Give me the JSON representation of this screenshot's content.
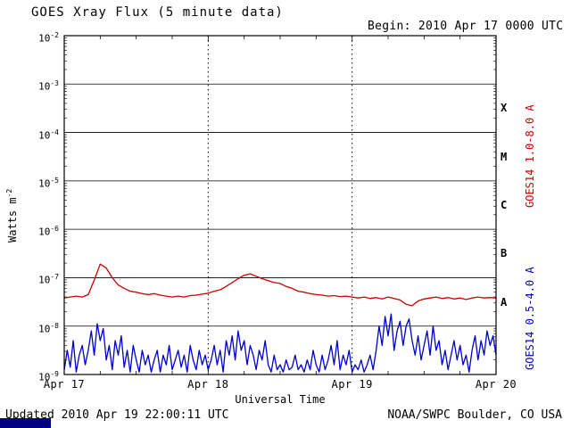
{
  "title": "GOES Xray Flux (5 minute data)",
  "begin_label": "Begin: 2010 Apr 17 0000 UTC",
  "footer": {
    "updated": "Updated 2010 Apr 19 22:00:11 UTC",
    "source": "NOAA/SWPC Boulder, CO USA"
  },
  "axis": {
    "ylabel_main": "Watts m",
    "ylabel_exp": "-2",
    "xlabel": "Universal Time"
  },
  "colors": {
    "long_channel": "#cc0000",
    "short_channel": "#0000cc",
    "axis": "#000000",
    "corner_artifact": "#000080"
  },
  "chart_data": {
    "type": "line",
    "title": "GOES Xray Flux (5 minute data)",
    "xlabel": "Universal Time",
    "ylabel": "Watts m-2",
    "y_scale": "log10",
    "ylim_exp": [
      -9,
      -2
    ],
    "y_log_ticks_exp": [
      -2,
      -3,
      -4,
      -5,
      -6,
      -7,
      -8,
      -9
    ],
    "x_ticks": [
      "Apr 17",
      "Apr 18",
      "Apr 19",
      "Apr 20"
    ],
    "x_tick_hours": [
      0,
      24,
      48,
      72
    ],
    "begin_time": "2010 Apr 17 0000 UTC",
    "grid": {
      "h_solid_exp": [
        -3,
        -4,
        -5,
        -6,
        -7,
        -8
      ],
      "v_dotted_hours": [
        24,
        48
      ]
    },
    "flare_classes": [
      {
        "label": "X",
        "mid_exp": -3.5
      },
      {
        "label": "M",
        "mid_exp": -4.5
      },
      {
        "label": "C",
        "mid_exp": -5.5
      },
      {
        "label": "B",
        "mid_exp": -6.5
      },
      {
        "label": "A",
        "mid_exp": -7.5
      }
    ],
    "series": [
      {
        "name": "GOES14 1.0-8.0 A",
        "color": "#cc0000",
        "x_start_hours": 0,
        "x_step_hours": 1,
        "log10_flux": [
          -7.42,
          -7.4,
          -7.38,
          -7.4,
          -7.35,
          -7.05,
          -6.72,
          -6.8,
          -7.0,
          -7.15,
          -7.22,
          -7.28,
          -7.3,
          -7.33,
          -7.35,
          -7.33,
          -7.36,
          -7.38,
          -7.4,
          -7.38,
          -7.4,
          -7.37,
          -7.36,
          -7.34,
          -7.32,
          -7.28,
          -7.25,
          -7.18,
          -7.1,
          -7.02,
          -6.95,
          -6.92,
          -6.97,
          -7.02,
          -7.06,
          -7.1,
          -7.12,
          -7.18,
          -7.22,
          -7.28,
          -7.3,
          -7.33,
          -7.35,
          -7.36,
          -7.38,
          -7.37,
          -7.39,
          -7.38,
          -7.4,
          -7.42,
          -7.4,
          -7.43,
          -7.41,
          -7.44,
          -7.4,
          -7.43,
          -7.46,
          -7.55,
          -7.58,
          -7.48,
          -7.44,
          -7.42,
          -7.4,
          -7.43,
          -7.41,
          -7.44,
          -7.42,
          -7.45,
          -7.42,
          -7.4,
          -7.42,
          -7.41,
          -7.42
        ]
      },
      {
        "name": "GOES14 0.5-4.0 A",
        "color": "#0000cc",
        "x_start_hours": 0,
        "x_step_hours": 0.5,
        "log10_flux": [
          -8.9,
          -8.5,
          -8.85,
          -8.3,
          -8.95,
          -8.6,
          -8.4,
          -8.8,
          -8.5,
          -8.1,
          -8.6,
          -7.95,
          -8.3,
          -8.05,
          -8.7,
          -8.4,
          -8.9,
          -8.3,
          -8.6,
          -8.2,
          -8.85,
          -8.5,
          -8.95,
          -8.4,
          -8.7,
          -8.95,
          -8.5,
          -8.8,
          -8.6,
          -8.95,
          -8.7,
          -8.5,
          -8.95,
          -8.6,
          -8.8,
          -8.4,
          -8.9,
          -8.7,
          -8.5,
          -8.85,
          -8.6,
          -8.95,
          -8.4,
          -8.7,
          -8.9,
          -8.5,
          -8.8,
          -8.6,
          -8.9,
          -8.7,
          -8.4,
          -8.8,
          -8.5,
          -8.95,
          -8.3,
          -8.6,
          -8.2,
          -8.7,
          -8.1,
          -8.5,
          -8.3,
          -8.8,
          -8.4,
          -8.6,
          -8.9,
          -8.5,
          -8.7,
          -8.3,
          -8.8,
          -8.95,
          -8.6,
          -8.9,
          -8.8,
          -8.95,
          -8.7,
          -8.9,
          -8.85,
          -8.6,
          -8.9,
          -8.8,
          -8.95,
          -8.7,
          -8.9,
          -8.5,
          -8.8,
          -8.95,
          -8.6,
          -8.9,
          -8.7,
          -8.4,
          -8.8,
          -8.3,
          -8.9,
          -8.6,
          -8.8,
          -8.5,
          -8.95,
          -8.8,
          -8.9,
          -8.7,
          -8.95,
          -8.8,
          -8.6,
          -8.9,
          -8.5,
          -8.0,
          -8.4,
          -7.8,
          -8.2,
          -7.75,
          -8.5,
          -8.1,
          -7.9,
          -8.4,
          -8.0,
          -7.85,
          -8.3,
          -8.6,
          -8.2,
          -8.7,
          -8.4,
          -8.1,
          -8.6,
          -8.0,
          -8.5,
          -8.3,
          -8.8,
          -8.5,
          -8.9,
          -8.6,
          -8.3,
          -8.7,
          -8.4,
          -8.8,
          -8.6,
          -8.95,
          -8.5,
          -8.2,
          -8.7,
          -8.3,
          -8.6,
          -8.1,
          -8.4,
          -8.2,
          -8.6
        ]
      }
    ]
  }
}
